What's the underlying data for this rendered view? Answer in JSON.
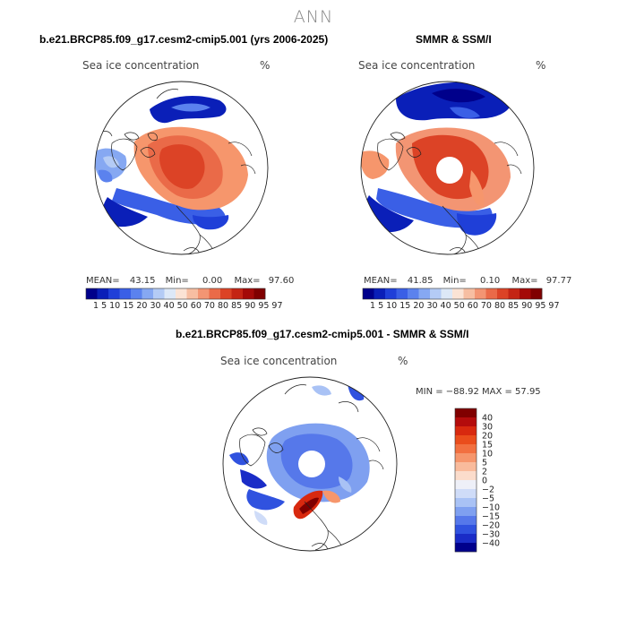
{
  "season": "ANN",
  "top_left": {
    "title": "b.e21.BRCP85.f09_g17.cesm2-cmip5.001 (yrs 2006-2025)",
    "field": "Sea ice concentration",
    "units": "%",
    "mean_label": "MEAN=",
    "mean": "43.15",
    "min_label": "Min=",
    "min": "0.00",
    "max_label": "Max=",
    "max": "97.60"
  },
  "top_right": {
    "title": "SMMR & SSM/I",
    "field": "Sea ice concentration",
    "units": "%",
    "mean_label": "MEAN=",
    "mean": "41.85",
    "min_label": "Min=",
    "min": "0.10",
    "max_label": "Max=",
    "max": "97.77"
  },
  "bottom": {
    "title": "b.e21.BRCP85.f09_g17.cesm2-cmip5.001 - SMMR & SSM/I",
    "field": "Sea ice concentration",
    "units": "%",
    "minmax": "MIN = −88.92  MAX =  57.95"
  },
  "conc_colorbar": {
    "ticks": "1  5 10 15 20 30 40 50 60 70 80 85 90 95 97",
    "colors": [
      "#00008b",
      "#0a1fb8",
      "#1f3fd8",
      "#3a5fe6",
      "#5b82ee",
      "#86a8f2",
      "#b4cbf5",
      "#dde8f7",
      "#fbe3d5",
      "#f7bea2",
      "#f39573",
      "#ea6a48",
      "#dc4326",
      "#c42414",
      "#a40a08",
      "#800000"
    ]
  },
  "diff_colorbar": {
    "labels": [
      "40",
      "30",
      "20",
      "15",
      "10",
      "5",
      "2",
      "0",
      "−2",
      "−5",
      "−10",
      "−15",
      "−20",
      "−30",
      "−40"
    ],
    "colors": [
      "#800000",
      "#b40c0c",
      "#d8290f",
      "#ea4d1c",
      "#f27040",
      "#f6966c",
      "#f9bb9c",
      "#fbdccb",
      "#eef0f8",
      "#cfdcf8",
      "#a9c2f5",
      "#7fa0f0",
      "#5678ea",
      "#3052df",
      "#1a2cc7",
      "#00008b"
    ]
  }
}
